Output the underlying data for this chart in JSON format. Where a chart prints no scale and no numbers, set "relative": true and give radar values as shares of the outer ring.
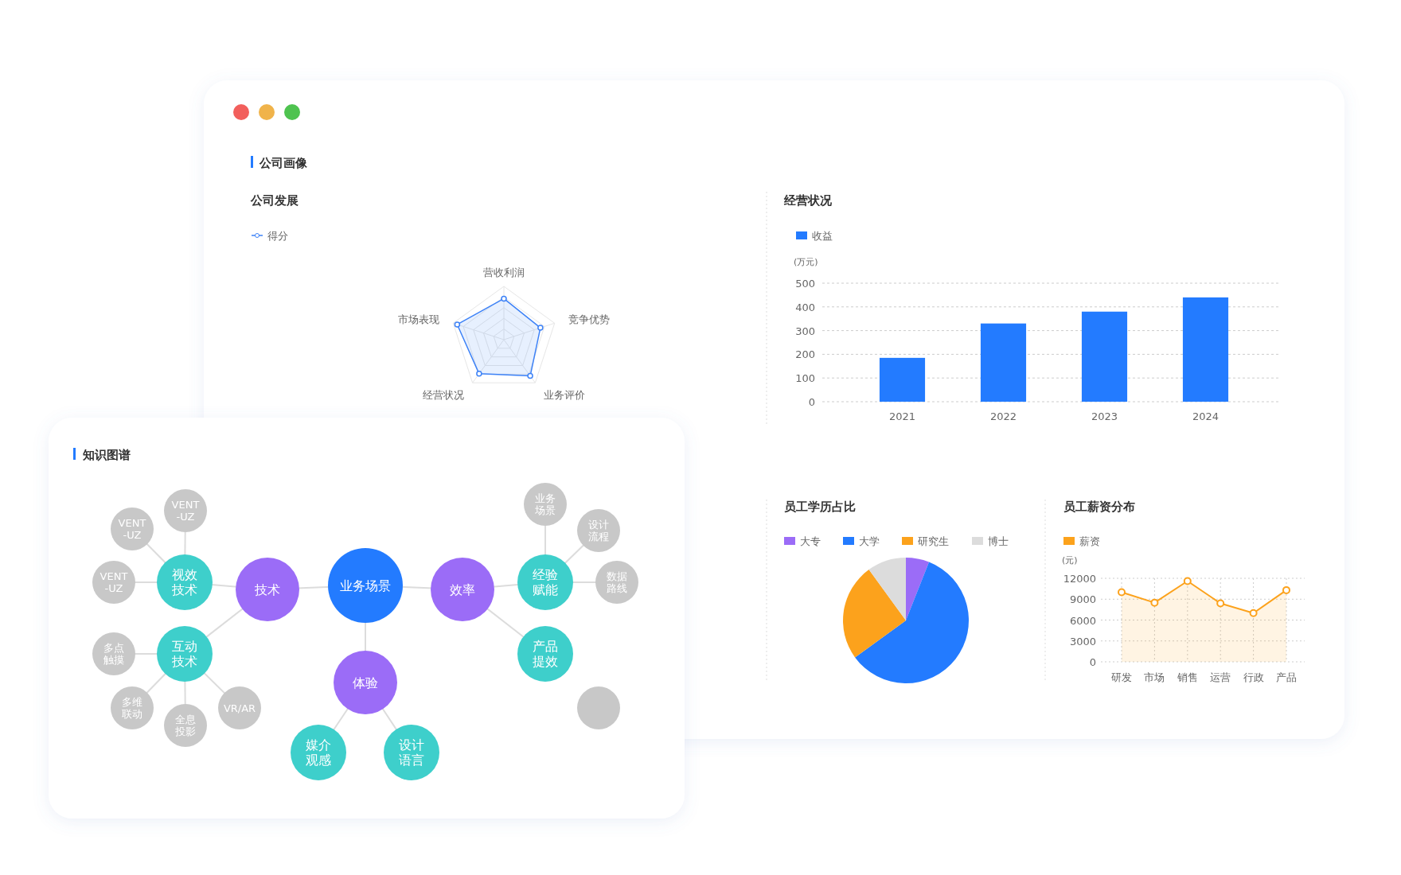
{
  "chart_data": [
    {
      "type": "radar",
      "title": "公司画像",
      "subtitle": "公司发展",
      "categories": [
        "营收利润",
        "竞争优势",
        "业务评价",
        "经营状况",
        "市场表现"
      ],
      "relative": true,
      "grid": true,
      "legend": "top left",
      "marker": "circle",
      "series": [
        {
          "name": "得分",
          "color": "#3d82f7",
          "values": [
            0.77,
            0.72,
            0.84,
            0.79,
            0.92
          ]
        }
      ]
    },
    {
      "type": "bar",
      "title": "经营状况",
      "ylabel": "(万元)",
      "categories": [
        "2021",
        "2022",
        "2023",
        "2024"
      ],
      "ylim": [
        0,
        500
      ],
      "yticks": [
        0,
        100,
        200,
        300,
        400,
        500
      ],
      "grid": "y",
      "legend": "top left",
      "series": [
        {
          "name": "收益",
          "color": "#237bff",
          "values": [
            185,
            330,
            380,
            440
          ]
        }
      ]
    },
    {
      "type": "pie",
      "title": "员工学历占比",
      "categories": [
        "大专",
        "大学",
        "研究生",
        "博士"
      ],
      "values": [
        6,
        59,
        25,
        10
      ],
      "colors": [
        "#9b6cf7",
        "#237bff",
        "#fca21c",
        "#dcdcdc"
      ],
      "legend": "top left"
    },
    {
      "type": "area",
      "title": "员工薪资分布",
      "ylabel": "(元)",
      "categories": [
        "研发",
        "市场",
        "销售",
        "运营",
        "行政",
        "产品"
      ],
      "ylim": [
        0,
        12000
      ],
      "yticks": [
        0,
        3000,
        6000,
        9000,
        12000
      ],
      "grid": true,
      "legend": "top left",
      "marker": "circle",
      "series": [
        {
          "name": "薪资",
          "color": "#fca21c",
          "values": [
            10000,
            8500,
            11600,
            8400,
            7000,
            10300
          ]
        }
      ]
    },
    {
      "type": "other",
      "title": "知识图谱",
      "annotations": [
        "业务场景",
        "技术",
        "效率",
        "体验",
        "视效技术",
        "互动技术",
        "经验赋能",
        "产品提效",
        "媒介观感",
        "设计语言",
        "VENT-UZ",
        "VENT-UZ",
        "VENT-UZ",
        "多点触摸",
        "多维联动",
        "全息投影",
        "VR/AR",
        "业务场景",
        "设计流程",
        "数据路线"
      ]
    }
  ]
}
